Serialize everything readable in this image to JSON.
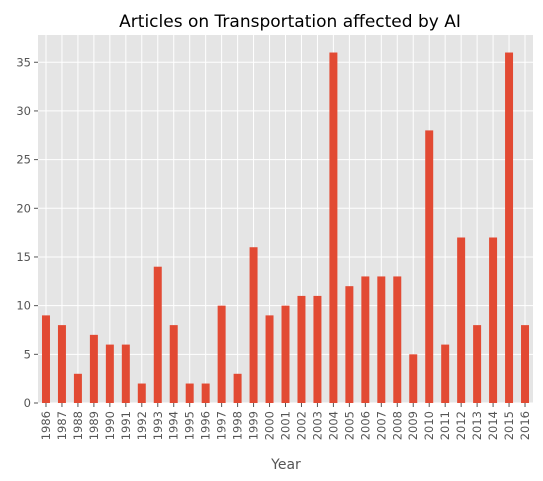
{
  "chart_data": {
    "type": "bar",
    "title": "Articles on Transportation affected by AI",
    "xlabel": "Year",
    "ylabel": "",
    "categories": [
      "1986",
      "1987",
      "1988",
      "1989",
      "1990",
      "1991",
      "1992",
      "1993",
      "1994",
      "1995",
      "1996",
      "1997",
      "1998",
      "1999",
      "2000",
      "2001",
      "2002",
      "2003",
      "2004",
      "2005",
      "2006",
      "2007",
      "2008",
      "2009",
      "2010",
      "2011",
      "2012",
      "2013",
      "2014",
      "2015",
      "2016"
    ],
    "values": [
      9,
      8,
      3,
      7,
      6,
      6,
      2,
      14,
      8,
      2,
      2,
      10,
      3,
      16,
      9,
      10,
      11,
      11,
      36,
      12,
      13,
      13,
      13,
      5,
      28,
      6,
      17,
      8,
      17,
      36,
      8
    ],
    "ylim": [
      0,
      37.8
    ],
    "yticks": [
      0,
      5,
      10,
      15,
      20,
      25,
      30,
      35
    ],
    "grid": true,
    "legend": "none",
    "colors": {
      "bar": "#E24A33",
      "plot_background": "#E5E5E5",
      "grid": "#FFFFFF",
      "text": "#555555"
    }
  }
}
